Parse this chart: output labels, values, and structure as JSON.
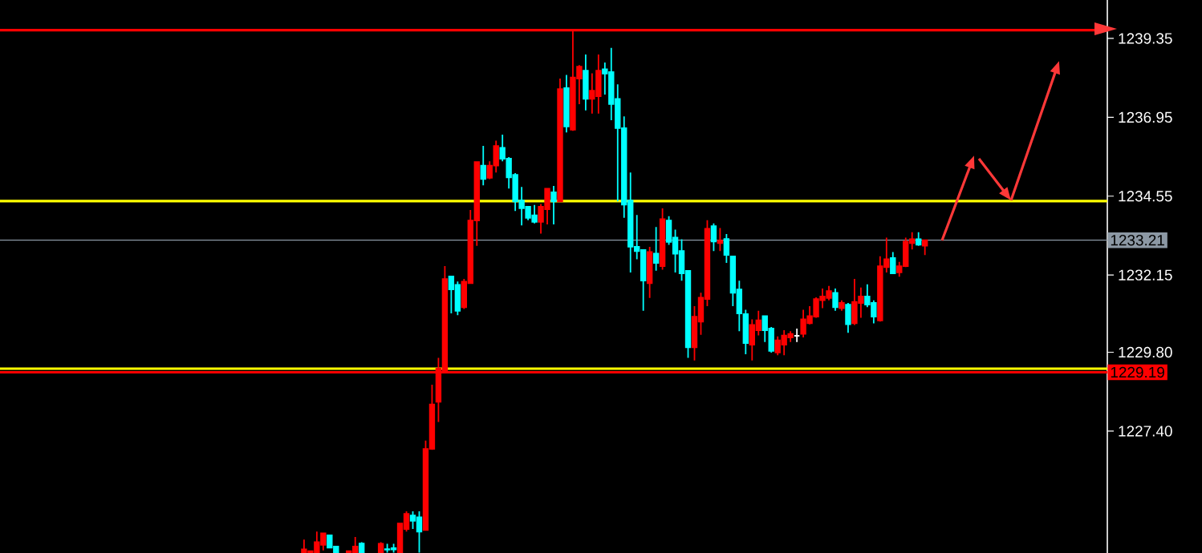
{
  "chart_data": {
    "type": "candlestick",
    "tick_labels": "y",
    "categories": [
      null,
      null,
      null,
      null,
      null,
      null,
      null,
      null,
      null,
      null,
      null,
      null,
      null,
      null,
      null,
      null,
      null,
      null,
      null,
      null,
      null,
      null,
      null,
      null,
      null,
      null,
      null,
      null,
      null,
      null,
      null,
      null,
      null,
      null,
      null,
      null,
      null,
      null,
      null,
      null,
      null,
      null,
      null,
      null,
      null,
      null,
      null,
      null,
      null,
      null,
      null,
      null,
      null,
      null,
      null,
      null,
      null,
      null,
      null,
      null,
      null,
      null,
      null,
      null,
      null,
      null,
      null,
      null,
      null,
      null,
      null,
      null,
      null,
      null,
      null,
      null,
      null,
      null,
      null,
      null,
      null,
      null,
      null,
      null,
      null,
      null,
      null,
      null,
      null,
      null,
      null,
      null,
      null,
      null,
      null,
      null,
      null,
      null,
      null,
      null,
      null,
      null,
      null,
      null,
      null,
      null,
      null,
      null,
      null,
      null,
      null,
      null,
      null,
      null,
      null,
      null,
      null,
      null,
      null,
      null,
      null,
      null,
      null,
      null,
      null,
      null,
      null,
      null,
      null,
      null,
      null,
      null,
      null,
      null,
      null,
      null,
      null,
      null,
      null,
      null,
      null,
      null,
      null,
      null,
      null,
      null,
      null,
      null,
      null,
      null,
      null,
      null,
      null,
      null,
      null,
      null,
      null,
      null,
      null,
      null,
      null,
      null,
      null,
      null,
      null,
      null,
      null,
      null,
      null,
      null,
      null,
      null,
      null
    ],
    "ohlc": [
      null,
      null,
      null,
      null,
      null,
      null,
      null,
      null,
      null,
      null,
      null,
      null,
      null,
      null,
      null,
      null,
      null,
      null,
      null,
      null,
      null,
      null,
      null,
      null,
      null,
      null,
      null,
      null,
      null,
      null,
      null,
      null,
      null,
      null,
      null,
      null,
      null,
      null,
      null,
      null,
      null,
      null,
      null,
      null,
      null,
      null,
      null,
      [
        1223.7,
        1224.1,
        1223.7,
        1223.8
      ],
      [
        1223.7,
        1223.77,
        1223.7,
        1223.75
      ],
      [
        1223.7,
        1224.34,
        1223.7,
        1224.02
      ],
      [
        1223.94,
        1224.29,
        1223.77,
        1224.29
      ],
      [
        1224.23,
        1224.23,
        1223.85,
        1223.85
      ],
      [
        1223.89,
        1223.89,
        1223.7,
        1223.7
      ],
      null,
      [
        1223.7,
        1223.77,
        1223.7,
        1223.75
      ],
      [
        1223.7,
        1224.18,
        1223.7,
        1223.89
      ],
      [
        1223.98,
        1224.02,
        1223.7,
        1223.7
      ],
      null,
      null,
      [
        1223.7,
        1224.02,
        1223.7,
        1223.97
      ],
      [
        1223.81,
        1223.97,
        1223.7,
        1223.79
      ],
      [
        1223.84,
        1223.97,
        1223.7,
        1223.8
      ],
      [
        1223.7,
        1224.59,
        1223.7,
        1224.59
      ],
      [
        1224.42,
        1224.96,
        1224.34,
        1224.88
      ],
      [
        1224.83,
        1224.96,
        1224.42,
        1224.67
      ],
      [
        1224.78,
        1224.96,
        1223.7,
        1224.34
      ],
      [
        1224.39,
        1227.11,
        1224.39,
        1226.86
      ],
      [
        1226.86,
        1228.81,
        1226.83,
        1228.21
      ],
      [
        1228.29,
        1229.63,
        1227.68,
        1229.3
      ],
      [
        1229.25,
        1232.42,
        1229.25,
        1232.03
      ],
      [
        1232.11,
        1232.11,
        1230.98,
        1231.71
      ],
      [
        1231.85,
        1231.95,
        1230.93,
        1231.06
      ],
      [
        1231.17,
        1232.03,
        1231.12,
        1231.95
      ],
      [
        1231.9,
        1234.13,
        1231.9,
        1233.81
      ],
      [
        1233.81,
        1235.59,
        1233.04,
        1235.59
      ],
      [
        1235.48,
        1236.08,
        1234.88,
        1235.07
      ],
      [
        1235.11,
        1235.61,
        1235.07,
        1235.48
      ],
      [
        1235.48,
        1236.24,
        1235.27,
        1236.08
      ],
      [
        1236.02,
        1236.42,
        1235.61,
        1235.69
      ],
      [
        1235.69,
        1235.74,
        1234.78,
        1235.12
      ],
      [
        1235.2,
        1235.25,
        1234.1,
        1234.39
      ],
      [
        1234.42,
        1234.83,
        1233.66,
        1234.18
      ],
      [
        1234.23,
        1234.23,
        1233.82,
        1233.89
      ],
      [
        1233.97,
        1234.28,
        1233.72,
        1233.77
      ],
      [
        1233.77,
        1234.31,
        1233.41,
        1234.23
      ],
      [
        1234.15,
        1234.78,
        1233.69,
        1234.78
      ],
      [
        1234.67,
        1234.86,
        1233.69,
        1234.39
      ],
      [
        1234.39,
        1238.13,
        1234.39,
        1237.81
      ],
      [
        1237.84,
        1238.24,
        1236.49,
        1236.67
      ],
      [
        1236.57,
        1239.59,
        1236.54,
        1238.16
      ],
      [
        1238.13,
        1238.54,
        1237.35,
        1238.49
      ],
      [
        1238.37,
        1238.86,
        1237.16,
        1237.51
      ],
      [
        1237.51,
        1238.29,
        1237.06,
        1237.76
      ],
      [
        1237.59,
        1238.86,
        1237.06,
        1238.37
      ],
      [
        1238.41,
        1238.62,
        1237.64,
        1238.28
      ],
      [
        1238.33,
        1239.06,
        1236.86,
        1237.35
      ],
      [
        1237.51,
        1237.95,
        1234.39,
        1236.62
      ],
      [
        1236.62,
        1236.98,
        1233.89,
        1234.29
      ],
      [
        1234.42,
        1235.27,
        1232.23,
        1233.01
      ],
      [
        1233.01,
        1233.98,
        1232.63,
        1232.88
      ],
      [
        1232.91,
        1232.91,
        1231.06,
        1231.98
      ],
      [
        1231.9,
        1233.01,
        1231.45,
        1232.85
      ],
      [
        1232.8,
        1233.61,
        1232.28,
        1232.52
      ],
      [
        1232.42,
        1234.18,
        1232.31,
        1233.85
      ],
      [
        1233.81,
        1233.94,
        1233.07,
        1233.16
      ],
      [
        1233.29,
        1233.53,
        1232.23,
        1232.8
      ],
      [
        1232.88,
        1233.24,
        1231.98,
        1232.2
      ],
      [
        1232.28,
        1232.28,
        1229.63,
        1229.95
      ],
      [
        1229.95,
        1231.2,
        1229.55,
        1230.88
      ],
      [
        1230.73,
        1231.61,
        1230.33,
        1231.46
      ],
      [
        1231.42,
        1233.82,
        1231.2,
        1233.56
      ],
      [
        1233.64,
        1233.72,
        1232.88,
        1233.17
      ],
      [
        1233.12,
        1233.58,
        1232.88,
        1233.2
      ],
      [
        1233.25,
        1233.4,
        1232.52,
        1232.76
      ],
      [
        1232.72,
        1232.72,
        1231.2,
        1231.61
      ],
      [
        1231.71,
        1231.98,
        1230.44,
        1230.98
      ],
      [
        1230.96,
        1231.09,
        1229.74,
        1230.08
      ],
      [
        1230.03,
        1230.8,
        1229.55,
        1230.63
      ],
      [
        1230.47,
        1231.06,
        1230.31,
        1230.77
      ],
      [
        1230.9,
        1230.9,
        1230.11,
        1230.47
      ],
      [
        1230.52,
        1230.57,
        1229.79,
        1229.84
      ],
      [
        1229.79,
        1230.28,
        1229.71,
        1230.16
      ],
      [
        1230.03,
        1230.47,
        1229.71,
        1230.31
      ],
      [
        1230.25,
        1230.44,
        1230.11,
        1230.36
      ],
      [
        1230.3,
        1230.52,
        1230.11,
        1230.3
      ],
      [
        1230.36,
        1231.09,
        1230.25,
        1230.8
      ],
      [
        1230.68,
        1231.2,
        1230.65,
        1230.9
      ],
      [
        1230.88,
        1231.47,
        1230.85,
        1231.42
      ],
      [
        1231.38,
        1231.74,
        1231.14,
        1231.5
      ],
      [
        1231.45,
        1231.82,
        1231.38,
        1231.66
      ],
      [
        1231.61,
        1231.74,
        1231.06,
        1231.17
      ],
      [
        1231.14,
        1231.38,
        1231.06,
        1231.3
      ],
      [
        1231.25,
        1231.3,
        1230.39,
        1230.65
      ],
      [
        1230.68,
        1232.03,
        1230.63,
        1231.33
      ],
      [
        1231.3,
        1231.77,
        1230.85,
        1231.5
      ],
      [
        1231.5,
        1231.87,
        1231.17,
        1231.25
      ],
      [
        1231.3,
        1231.38,
        1230.68,
        1230.88
      ],
      [
        1230.77,
        1232.72,
        1230.73,
        1232.42
      ],
      [
        1232.39,
        1233.29,
        1232.23,
        1232.63
      ],
      [
        1232.67,
        1232.85,
        1232.18,
        1232.2
      ],
      [
        1232.23,
        1232.55,
        1232.1,
        1232.42
      ],
      [
        1232.42,
        1233.29,
        1232.39,
        1233.17
      ],
      [
        1233.12,
        1233.45,
        1232.93,
        1233.24
      ],
      [
        1233.24,
        1233.45,
        1233.04,
        1233.07
      ],
      [
        1233.04,
        1233.21,
        1232.76,
        1233.21
      ],
      null,
      null,
      null,
      null,
      null,
      null,
      null,
      null,
      null,
      null,
      null,
      null,
      null,
      null,
      null,
      null,
      null,
      null,
      null,
      null,
      null,
      null,
      null,
      null,
      null,
      null,
      null,
      null
    ],
    "colors": [
      null,
      null,
      null,
      null,
      null,
      null,
      null,
      null,
      null,
      null,
      null,
      null,
      null,
      null,
      null,
      null,
      null,
      null,
      null,
      null,
      null,
      null,
      null,
      null,
      null,
      null,
      null,
      null,
      null,
      null,
      null,
      null,
      null,
      null,
      null,
      null,
      null,
      null,
      null,
      null,
      null,
      null,
      null,
      null,
      null,
      null,
      null,
      "#ff0000",
      "#ff0000",
      "#ff0000",
      "#ff0000",
      "#00ffff",
      "#00ffff",
      null,
      "#ff0000",
      "#ff0000",
      "#00ffff",
      null,
      null,
      "#ff0000",
      "#00ffff",
      "#00ffff",
      "#ff0000",
      "#ff0000",
      "#00ffff",
      "#00ffff",
      "#ff0000",
      "#ff0000",
      "#ff0000",
      "#ff0000",
      "#00ffff",
      "#00ffff",
      "#ff0000",
      "#ff0000",
      "#ff0000",
      "#00ffff",
      "#ff0000",
      "#ff0000",
      "#00ffff",
      "#00ffff",
      "#00ffff",
      "#00ffff",
      "#00ffff",
      "#00ffff",
      "#ff0000",
      "#ff0000",
      "#00ffff",
      "#ff0000",
      "#00ffff",
      "#ff0000",
      "#ff0000",
      "#00ffff",
      "#ff0000",
      "#ff0000",
      "#00ffff",
      "#00ffff",
      "#00ffff",
      "#00ffff",
      "#00ffff",
      "#00ffff",
      "#00ffff",
      "#ff0000",
      "#00ffff",
      "#ff0000",
      "#00ffff",
      "#00ffff",
      "#00ffff",
      "#00ffff",
      "#ff0000",
      "#ff0000",
      "#ff0000",
      "#00ffff",
      "#ff0000",
      "#00ffff",
      "#00ffff",
      "#00ffff",
      "#00ffff",
      "#ff0000",
      "#ff0000",
      "#00ffff",
      "#00ffff",
      "#ff0000",
      "#ff0000",
      "#ff0000",
      "#ffffff",
      "#ff0000",
      "#ff0000",
      "#ff0000",
      "#ff0000",
      "#ff0000",
      "#00ffff",
      "#ff0000",
      "#00ffff",
      "#ff0000",
      "#ff0000",
      "#00ffff",
      "#00ffff",
      "#ff0000",
      "#ff0000",
      "#00ffff",
      "#ff0000",
      "#ff0000",
      "#ff0000",
      "#00ffff",
      "#ff0000",
      null,
      null,
      null,
      null,
      null,
      null,
      null,
      null,
      null,
      null,
      null,
      null,
      null,
      null,
      null,
      null,
      null,
      null,
      null,
      null,
      null,
      null,
      null,
      null,
      null,
      null,
      null,
      null
    ],
    "ylim": [
      1223.69,
      1240.52
    ],
    "yticks": [
      {
        "value": 1227.4,
        "label": "1227.40"
      },
      {
        "value": 1229.8,
        "label": "1229.80"
      },
      1232.15,
      1234.55,
      1236.95,
      1239.35
    ],
    "ref_lines": [
      {
        "axis": "y",
        "value": 1239.6,
        "color": "#ff0000"
      },
      {
        "axis": "y",
        "value": 1234.4,
        "color": "#ffff00"
      },
      {
        "axis": "y",
        "value": 1233.21,
        "label": "1233.21",
        "color": "#8c98a4"
      },
      {
        "axis": "y",
        "value": 1229.3,
        "color": "#ffff00"
      },
      {
        "axis": "y",
        "value": 1229.19,
        "label": "1229.19",
        "color": "#ff0000"
      }
    ]
  }
}
